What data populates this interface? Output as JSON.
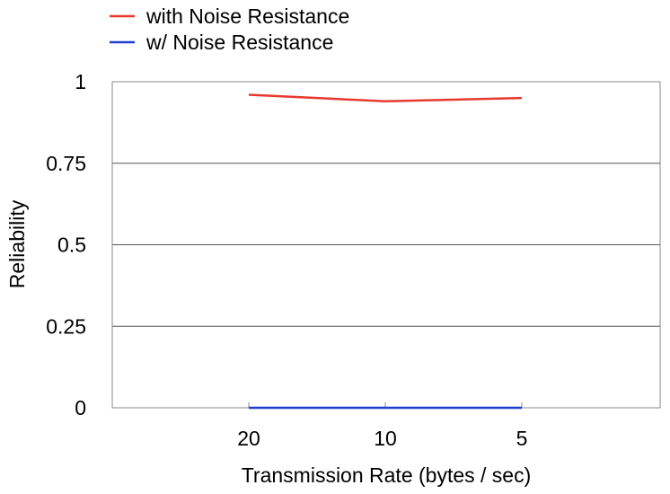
{
  "chart_data": {
    "type": "line",
    "title": "",
    "xlabel": "Transmission Rate (bytes / sec)",
    "ylabel": "Reliability",
    "categories": [
      "20",
      "10",
      "5"
    ],
    "ylim": [
      0,
      1
    ],
    "yticks": [
      "0",
      "0.25",
      "0.5",
      "0.75",
      "1"
    ],
    "grid": "horizontal",
    "legend": "top-left",
    "series": [
      {
        "name": "with Noise Resistance",
        "color": "#e8392f",
        "values": [
          0.96,
          0.94,
          0.95
        ]
      },
      {
        "name": "w/ Noise Resistance",
        "color": "#1f3fd1",
        "values": [
          0.0,
          0.0,
          0.0
        ]
      }
    ]
  }
}
